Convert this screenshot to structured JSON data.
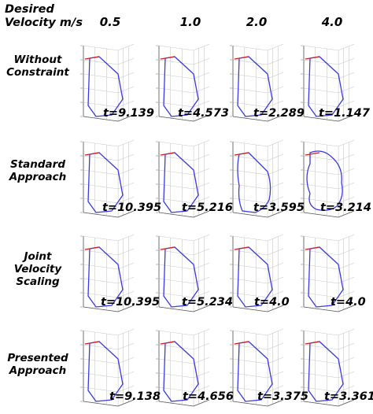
{
  "header": {
    "title_line1": "Desired",
    "title_line2": "Velocity m/s",
    "columns": [
      "0.5",
      "1.0",
      "2.0",
      "4.0"
    ]
  },
  "rows": [
    {
      "label_lines": [
        "Without",
        "Constraint"
      ],
      "times": [
        "t=9.139",
        "t=4.573",
        "t=2.289",
        "t=1.147"
      ]
    },
    {
      "label_lines": [
        "Standard",
        "Approach"
      ],
      "times": [
        "t=10.395",
        "t=5.216",
        "t=3.595",
        "t=3.214"
      ]
    },
    {
      "label_lines": [
        "Joint",
        "Velocity",
        "Scaling"
      ],
      "times": [
        "t=10.395",
        "t=5.234",
        "t=4.0",
        "t=4.0"
      ]
    },
    {
      "label_lines": [
        "Presented",
        "Approach"
      ],
      "times": [
        "t=9.138",
        "t=4.656",
        "t=3.375",
        "t=3.361"
      ]
    }
  ],
  "colors": {
    "trajectory": "#3a3ae0",
    "start_segment": "#d02020",
    "grid": "#c8c8c8",
    "axis": "#555555",
    "text": "#000000"
  }
}
